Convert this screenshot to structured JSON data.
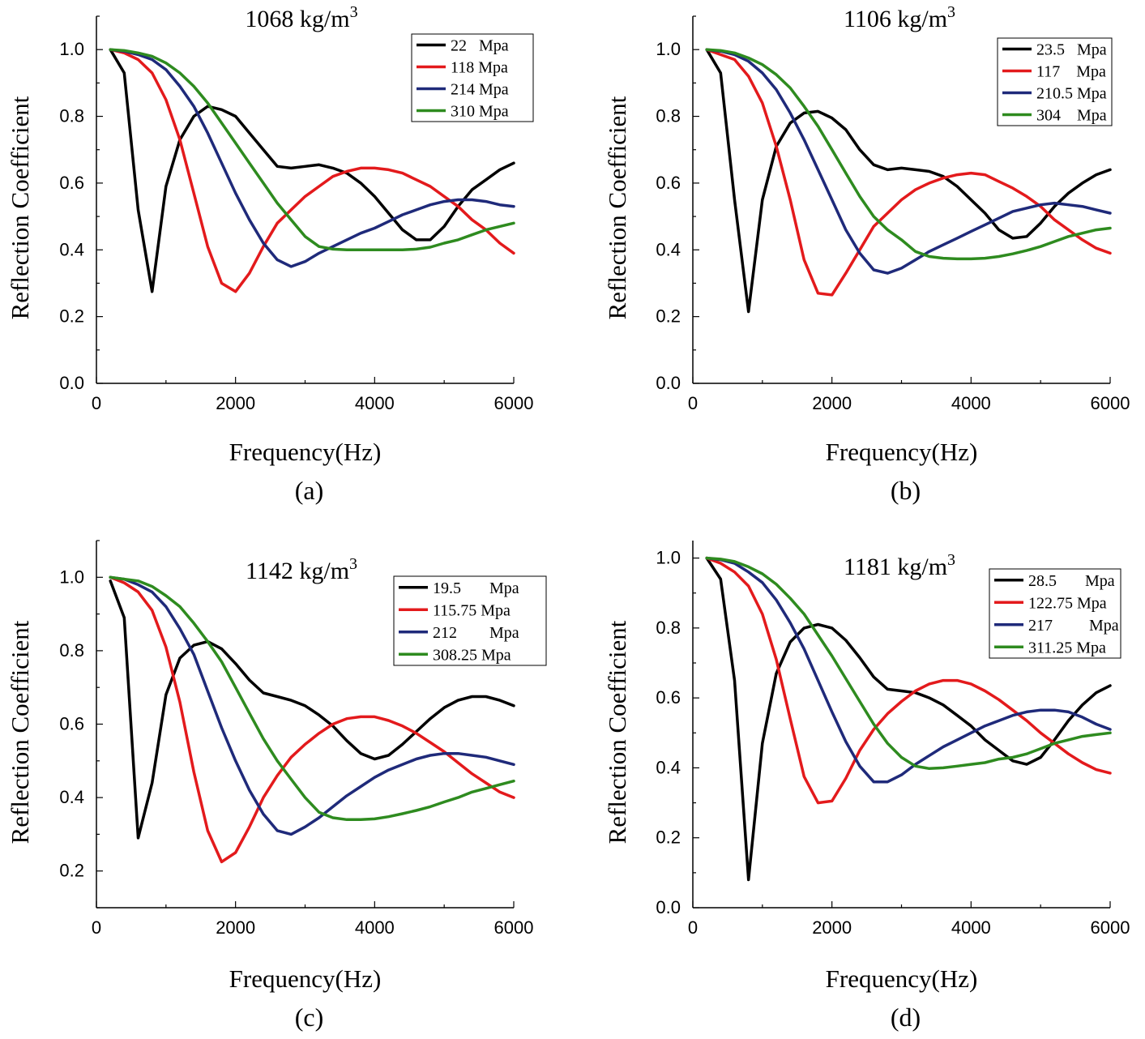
{
  "colors": {
    "black": "#000000",
    "red": "#e31a1c",
    "blue": "#1f2a7a",
    "green": "#2e8b1f"
  },
  "chart_data": [
    {
      "type": "line",
      "panel_label": "(a)",
      "title_prefix": "1068 kg/m",
      "title_sup": "3",
      "xlabel": "Frequency(Hz)",
      "ylabel": "Reflection Coefficient",
      "xlim": [
        0,
        6000
      ],
      "ylim": [
        0,
        1.1
      ],
      "xticks": [
        0,
        2000,
        4000,
        6000
      ],
      "xtick_labels": [
        "0",
        "2000",
        "4000",
        "6000"
      ],
      "yticks": [
        0.0,
        0.2,
        0.4,
        0.6,
        0.8,
        1.0
      ],
      "ytick_labels": [
        "0.0",
        "0.2",
        "0.4",
        "0.6",
        "0.8",
        "1.0"
      ],
      "legend_position": "top-right",
      "x": [
        200,
        400,
        600,
        800,
        1000,
        1200,
        1400,
        1600,
        1800,
        2000,
        2200,
        2400,
        2600,
        2800,
        3000,
        3200,
        3400,
        3600,
        3800,
        4000,
        4200,
        4400,
        4600,
        4800,
        5000,
        5200,
        5400,
        5600,
        5800,
        6000
      ],
      "series": [
        {
          "name": "22   Mpa",
          "color": "black",
          "values": [
            1.0,
            0.93,
            0.52,
            0.275,
            0.59,
            0.73,
            0.8,
            0.83,
            0.82,
            0.8,
            0.75,
            0.7,
            0.65,
            0.645,
            0.65,
            0.655,
            0.645,
            0.63,
            0.6,
            0.56,
            0.51,
            0.46,
            0.43,
            0.43,
            0.47,
            0.53,
            0.58,
            0.61,
            0.64,
            0.66
          ]
        },
        {
          "name": "118 Mpa",
          "color": "red",
          "values": [
            1.0,
            0.99,
            0.97,
            0.93,
            0.85,
            0.73,
            0.57,
            0.41,
            0.3,
            0.275,
            0.33,
            0.41,
            0.48,
            0.52,
            0.56,
            0.59,
            0.62,
            0.635,
            0.645,
            0.645,
            0.64,
            0.63,
            0.61,
            0.59,
            0.56,
            0.53,
            0.49,
            0.46,
            0.42,
            0.39
          ]
        },
        {
          "name": "214 Mpa",
          "color": "blue",
          "values": [
            1.0,
            0.995,
            0.985,
            0.97,
            0.94,
            0.89,
            0.83,
            0.75,
            0.66,
            0.57,
            0.49,
            0.42,
            0.37,
            0.35,
            0.365,
            0.39,
            0.41,
            0.43,
            0.45,
            0.465,
            0.485,
            0.505,
            0.52,
            0.535,
            0.545,
            0.55,
            0.55,
            0.545,
            0.535,
            0.53
          ]
        },
        {
          "name": "310 Mpa",
          "color": "green",
          "values": [
            1.0,
            0.997,
            0.99,
            0.98,
            0.96,
            0.93,
            0.89,
            0.84,
            0.78,
            0.72,
            0.66,
            0.6,
            0.54,
            0.49,
            0.44,
            0.41,
            0.402,
            0.4,
            0.4,
            0.4,
            0.4,
            0.4,
            0.402,
            0.408,
            0.42,
            0.43,
            0.445,
            0.46,
            0.47,
            0.48
          ]
        }
      ]
    },
    {
      "type": "line",
      "panel_label": "(b)",
      "title_prefix": "1106 kg/m",
      "title_sup": "3",
      "xlabel": "Frequency(Hz)",
      "ylabel": "Reflection Coefficient",
      "xlim": [
        0,
        6000
      ],
      "ylim": [
        0,
        1.1
      ],
      "xticks": [
        0,
        2000,
        4000,
        6000
      ],
      "xtick_labels": [
        "0",
        "2000",
        "4000",
        "6000"
      ],
      "yticks": [
        0.0,
        0.2,
        0.4,
        0.6,
        0.8,
        1.0
      ],
      "ytick_labels": [
        "0.0",
        "0.2",
        "0.4",
        "0.6",
        "0.8",
        "1.0"
      ],
      "legend_position": "top-right",
      "x": [
        200,
        400,
        600,
        800,
        1000,
        1200,
        1400,
        1600,
        1800,
        2000,
        2200,
        2400,
        2600,
        2800,
        3000,
        3200,
        3400,
        3600,
        3800,
        4000,
        4200,
        4400,
        4600,
        4800,
        5000,
        5200,
        5400,
        5600,
        5800,
        6000
      ],
      "series": [
        {
          "name": "23.5   Mpa",
          "color": "black",
          "values": [
            1.0,
            0.93,
            0.55,
            0.215,
            0.55,
            0.71,
            0.78,
            0.81,
            0.815,
            0.795,
            0.76,
            0.7,
            0.655,
            0.64,
            0.645,
            0.64,
            0.635,
            0.62,
            0.59,
            0.55,
            0.51,
            0.46,
            0.435,
            0.44,
            0.48,
            0.53,
            0.57,
            0.6,
            0.625,
            0.64
          ]
        },
        {
          "name": "117    Mpa",
          "color": "red",
          "values": [
            1.0,
            0.985,
            0.97,
            0.92,
            0.84,
            0.71,
            0.55,
            0.37,
            0.27,
            0.265,
            0.33,
            0.4,
            0.47,
            0.51,
            0.55,
            0.58,
            0.6,
            0.615,
            0.625,
            0.63,
            0.625,
            0.605,
            0.585,
            0.56,
            0.53,
            0.49,
            0.46,
            0.43,
            0.405,
            0.39
          ]
        },
        {
          "name": "210.5 Mpa",
          "color": "blue",
          "values": [
            1.0,
            0.995,
            0.985,
            0.965,
            0.93,
            0.88,
            0.81,
            0.73,
            0.64,
            0.55,
            0.46,
            0.39,
            0.34,
            0.33,
            0.345,
            0.37,
            0.395,
            0.415,
            0.435,
            0.455,
            0.475,
            0.495,
            0.515,
            0.525,
            0.535,
            0.54,
            0.535,
            0.53,
            0.52,
            0.51
          ]
        },
        {
          "name": "304    Mpa",
          "color": "green",
          "values": [
            1.0,
            0.997,
            0.99,
            0.975,
            0.955,
            0.925,
            0.885,
            0.83,
            0.77,
            0.7,
            0.63,
            0.56,
            0.5,
            0.46,
            0.43,
            0.395,
            0.38,
            0.375,
            0.373,
            0.373,
            0.375,
            0.38,
            0.388,
            0.398,
            0.41,
            0.425,
            0.44,
            0.45,
            0.46,
            0.465
          ]
        }
      ]
    },
    {
      "type": "line",
      "panel_label": "(c)",
      "title_prefix": "1142 kg/m",
      "title_sup": "3",
      "xlabel": "Frequency(Hz)",
      "ylabel": "Reflection Coefficient",
      "xlim": [
        0,
        6000
      ],
      "ylim": [
        0.1,
        1.1
      ],
      "xticks": [
        0,
        2000,
        4000,
        6000
      ],
      "xtick_labels": [
        "0",
        "2000",
        "4000",
        "6000"
      ],
      "yticks": [
        0.2,
        0.4,
        0.6,
        0.8,
        1.0
      ],
      "ytick_labels": [
        "0.2",
        "0.4",
        "0.6",
        "0.8",
        "1.0"
      ],
      "legend_position": "top-right",
      "x": [
        200,
        400,
        600,
        800,
        1000,
        1200,
        1400,
        1600,
        1800,
        2000,
        2200,
        2400,
        2600,
        2800,
        3000,
        3200,
        3400,
        3600,
        3800,
        4000,
        4200,
        4400,
        4600,
        4800,
        5000,
        5200,
        5400,
        5600,
        5800,
        6000
      ],
      "series": [
        {
          "name": "19.5       Mpa",
          "color": "black",
          "values": [
            0.99,
            0.89,
            0.29,
            0.44,
            0.68,
            0.78,
            0.815,
            0.825,
            0.805,
            0.765,
            0.72,
            0.685,
            0.675,
            0.665,
            0.65,
            0.625,
            0.595,
            0.555,
            0.52,
            0.505,
            0.515,
            0.545,
            0.58,
            0.615,
            0.645,
            0.665,
            0.675,
            0.675,
            0.665,
            0.65
          ]
        },
        {
          "name": "115.75 Mpa",
          "color": "red",
          "values": [
            1.0,
            0.985,
            0.96,
            0.91,
            0.81,
            0.66,
            0.47,
            0.31,
            0.225,
            0.25,
            0.32,
            0.4,
            0.46,
            0.51,
            0.545,
            0.575,
            0.6,
            0.615,
            0.62,
            0.62,
            0.61,
            0.595,
            0.575,
            0.55,
            0.525,
            0.495,
            0.465,
            0.44,
            0.415,
            0.4
          ]
        },
        {
          "name": "212        Mpa",
          "color": "blue",
          "values": [
            1.0,
            0.995,
            0.98,
            0.96,
            0.92,
            0.86,
            0.79,
            0.69,
            0.59,
            0.5,
            0.42,
            0.355,
            0.31,
            0.3,
            0.32,
            0.345,
            0.375,
            0.405,
            0.43,
            0.455,
            0.475,
            0.49,
            0.505,
            0.515,
            0.52,
            0.52,
            0.515,
            0.51,
            0.5,
            0.49
          ]
        },
        {
          "name": "308.25 Mpa",
          "color": "green",
          "values": [
            1.0,
            0.995,
            0.99,
            0.975,
            0.95,
            0.92,
            0.875,
            0.825,
            0.77,
            0.7,
            0.63,
            0.56,
            0.5,
            0.45,
            0.4,
            0.36,
            0.345,
            0.34,
            0.34,
            0.342,
            0.348,
            0.356,
            0.365,
            0.375,
            0.388,
            0.4,
            0.415,
            0.425,
            0.435,
            0.445
          ]
        }
      ]
    },
    {
      "type": "line",
      "panel_label": "(d)",
      "title_prefix": "1181 kg/m",
      "title_sup": "3",
      "xlabel": "Frequency(Hz)",
      "ylabel": "Reflection Coefficient",
      "xlim": [
        0,
        6000
      ],
      "ylim": [
        0,
        1.05
      ],
      "xticks": [
        0,
        2000,
        4000,
        6000
      ],
      "xtick_labels": [
        "0",
        "2000",
        "4000",
        "6000"
      ],
      "yticks": [
        0.0,
        0.2,
        0.4,
        0.6,
        0.8,
        1.0
      ],
      "ytick_labels": [
        "0.0",
        "0.2",
        "0.4",
        "0.6",
        "0.8",
        "1.0"
      ],
      "legend_position": "top-right",
      "x": [
        200,
        400,
        600,
        800,
        1000,
        1200,
        1400,
        1600,
        1800,
        2000,
        2200,
        2400,
        2600,
        2800,
        3000,
        3200,
        3400,
        3600,
        3800,
        4000,
        4200,
        4400,
        4600,
        4800,
        5000,
        5200,
        5400,
        5600,
        5800,
        6000
      ],
      "series": [
        {
          "name": "28.5       Mpa",
          "color": "black",
          "values": [
            1.0,
            0.94,
            0.65,
            0.08,
            0.47,
            0.67,
            0.76,
            0.8,
            0.81,
            0.8,
            0.765,
            0.715,
            0.66,
            0.625,
            0.62,
            0.615,
            0.6,
            0.58,
            0.55,
            0.52,
            0.48,
            0.45,
            0.42,
            0.41,
            0.43,
            0.48,
            0.535,
            0.58,
            0.615,
            0.635
          ]
        },
        {
          "name": "122.75 Mpa",
          "color": "red",
          "values": [
            1.0,
            0.985,
            0.96,
            0.92,
            0.84,
            0.71,
            0.54,
            0.375,
            0.3,
            0.305,
            0.37,
            0.45,
            0.51,
            0.555,
            0.59,
            0.62,
            0.64,
            0.65,
            0.65,
            0.64,
            0.62,
            0.595,
            0.565,
            0.535,
            0.5,
            0.47,
            0.44,
            0.415,
            0.395,
            0.385
          ]
        },
        {
          "name": "217         Mpa",
          "color": "blue",
          "values": [
            1.0,
            0.995,
            0.985,
            0.96,
            0.93,
            0.88,
            0.815,
            0.74,
            0.65,
            0.56,
            0.475,
            0.405,
            0.36,
            0.36,
            0.38,
            0.41,
            0.435,
            0.46,
            0.48,
            0.5,
            0.52,
            0.535,
            0.55,
            0.56,
            0.565,
            0.565,
            0.56,
            0.545,
            0.525,
            0.51
          ]
        },
        {
          "name": "311.25 Mpa",
          "color": "green",
          "values": [
            1.0,
            0.997,
            0.99,
            0.975,
            0.955,
            0.925,
            0.885,
            0.84,
            0.78,
            0.72,
            0.655,
            0.59,
            0.525,
            0.47,
            0.43,
            0.405,
            0.398,
            0.4,
            0.405,
            0.41,
            0.415,
            0.425,
            0.43,
            0.44,
            0.455,
            0.47,
            0.48,
            0.49,
            0.495,
            0.5
          ]
        }
      ]
    }
  ]
}
